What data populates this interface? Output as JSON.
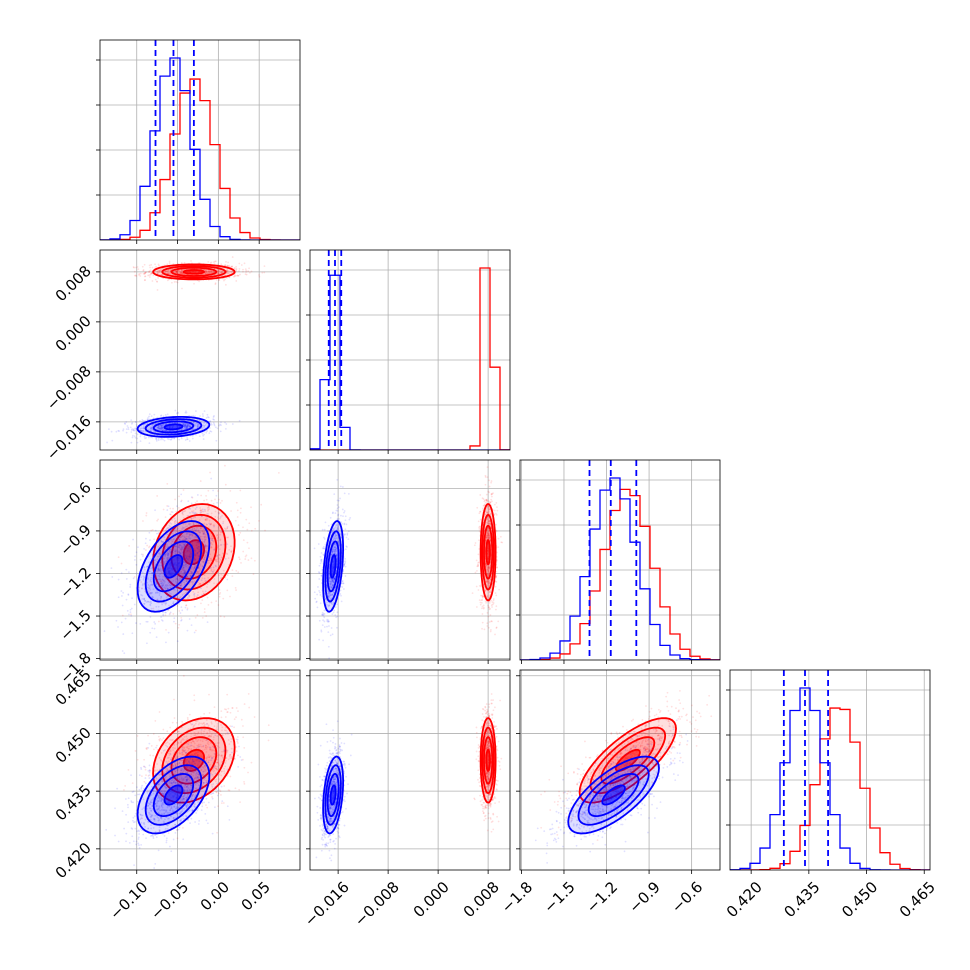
{
  "chart_data": {
    "type": "corner",
    "grid": true,
    "legend": "none",
    "parameters": [
      {
        "ticks": [
          "−0.10",
          "−0.05",
          "0.00",
          "0.05"
        ],
        "tick_values": [
          -0.1,
          -0.05,
          0.0,
          0.05
        ],
        "range": [
          -0.145,
          0.1
        ]
      },
      {
        "ticks": [
          "−0.016",
          "−0.008",
          "0.000",
          "0.008"
        ],
        "tick_values": [
          -0.016,
          -0.008,
          0.0,
          0.008
        ],
        "range": [
          -0.0205,
          0.0115
        ]
      },
      {
        "ticks": [
          "−1.8",
          "−1.5",
          "−1.2",
          "−0.9",
          "−0.6"
        ],
        "tick_values": [
          -1.8,
          -1.5,
          -1.2,
          -0.9,
          -0.6
        ],
        "range": [
          -1.81,
          -0.4
        ]
      },
      {
        "ticks": [
          "0.420",
          "0.435",
          "0.450",
          "0.465"
        ],
        "tick_values": [
          0.42,
          0.435,
          0.45,
          0.465
        ],
        "range": [
          0.4145,
          0.4665
        ]
      }
    ],
    "series": [
      {
        "color": "#ff0000",
        "means": [
          -0.03,
          0.008,
          -1.05,
          0.443
        ],
        "sds": [
          0.025,
          0.0006,
          0.17,
          0.0055
        ],
        "corr": [
          [
            1,
            0,
            0.2,
            0.3
          ],
          [
            0,
            1,
            0,
            0
          ],
          [
            0.2,
            0,
            1,
            0.75
          ],
          [
            0.3,
            0,
            0.75,
            1
          ]
        ]
      },
      {
        "color": "#0000ff",
        "means": [
          -0.055,
          -0.0168,
          -1.15,
          0.434
        ],
        "sds": [
          0.022,
          0.0008,
          0.16,
          0.005
        ],
        "corr": [
          [
            1,
            0.2,
            0.5,
            0.5
          ],
          [
            0.2,
            1,
            0.4,
            0.35
          ],
          [
            0.5,
            0.4,
            1,
            0.7
          ],
          [
            0.5,
            0.35,
            0.7,
            1
          ]
        ]
      }
    ],
    "quantile_lines": {
      "color": "#0000ff",
      "values": [
        [
          -0.077,
          -0.055,
          -0.03
        ],
        [
          -0.0175,
          -0.0165,
          -0.0155
        ],
        [
          -1.32,
          -1.17,
          -0.99
        ],
        [
          0.4285,
          0.434,
          0.44
        ]
      ]
    }
  }
}
